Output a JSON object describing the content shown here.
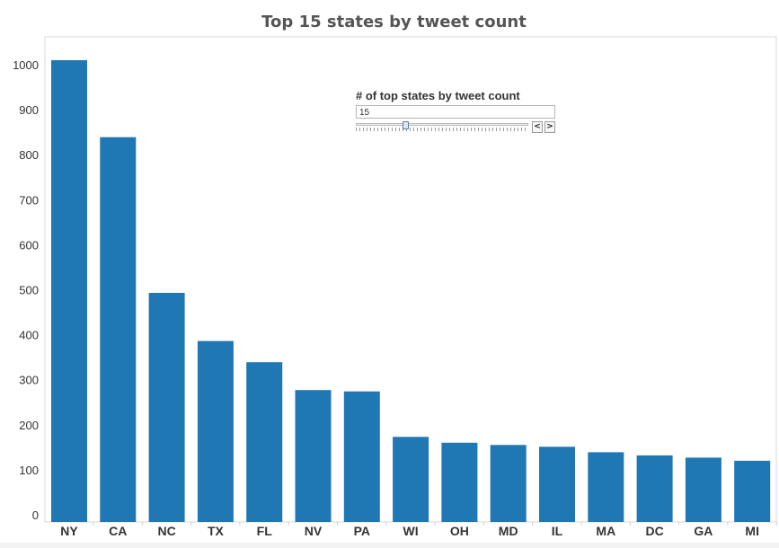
{
  "chart_data": {
    "type": "bar",
    "title": "Top 15 states by tweet count",
    "xlabel": "",
    "ylabel": "",
    "categories": [
      "NY",
      "CA",
      "NC",
      "TX",
      "FL",
      "NV",
      "PA",
      "WI",
      "OH",
      "MD",
      "IL",
      "MA",
      "DC",
      "GA",
      "MI"
    ],
    "values": [
      1010,
      839,
      493,
      386,
      339,
      277,
      274,
      173,
      160,
      155,
      151,
      139,
      132,
      127,
      120
    ],
    "ylim": [
      0,
      1050
    ],
    "yticks": [
      0,
      100,
      200,
      300,
      400,
      500,
      600,
      700,
      800,
      900,
      1000
    ],
    "grid": false,
    "legend": "none",
    "bar_color": "#1f77b4"
  },
  "slider": {
    "title": "# of top states by tweet count",
    "value": "15",
    "min": 1,
    "max": 51,
    "current": 15,
    "prev_icon": "chevron-left-icon",
    "next_icon": "chevron-right-icon",
    "prev_glyph": "<",
    "next_glyph": ">"
  }
}
